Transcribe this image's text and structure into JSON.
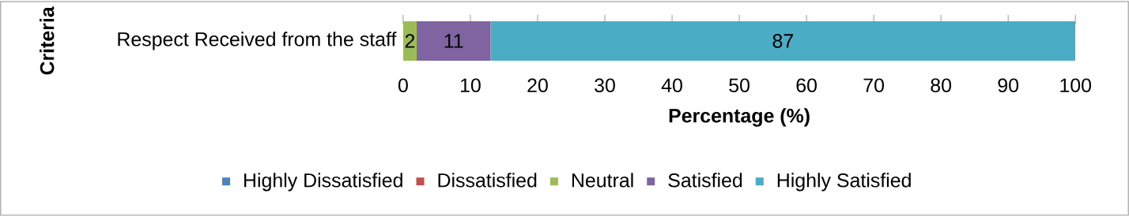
{
  "chart_data": {
    "type": "bar",
    "orientation": "horizontal",
    "stacked": true,
    "xlabel": "Percentage (%)",
    "ylabel": "Criteria",
    "categories": [
      "Respect Received from the staff"
    ],
    "series": [
      {
        "name": "Highly Dissatisfied",
        "color": "#4f81bd",
        "values": [
          0
        ],
        "value_labels": [
          null
        ]
      },
      {
        "name": "Dissatisfied",
        "color": "#c0504d",
        "values": [
          0
        ],
        "value_labels": [
          null
        ]
      },
      {
        "name": "Neutral",
        "color": "#9bbb59",
        "values": [
          2
        ],
        "value_labels": [
          "2"
        ]
      },
      {
        "name": "Satisfied",
        "color": "#8064a2",
        "values": [
          11
        ],
        "value_labels": [
          "11"
        ]
      },
      {
        "name": "Highly Satisfied",
        "color": "#4bacc6",
        "values": [
          87
        ],
        "value_labels": [
          "87"
        ]
      }
    ],
    "xlim": [
      0,
      100
    ],
    "xticks": [
      0,
      10,
      20,
      30,
      40,
      50,
      60,
      70,
      80,
      90,
      100
    ],
    "grid": false,
    "legend": "bottom"
  }
}
